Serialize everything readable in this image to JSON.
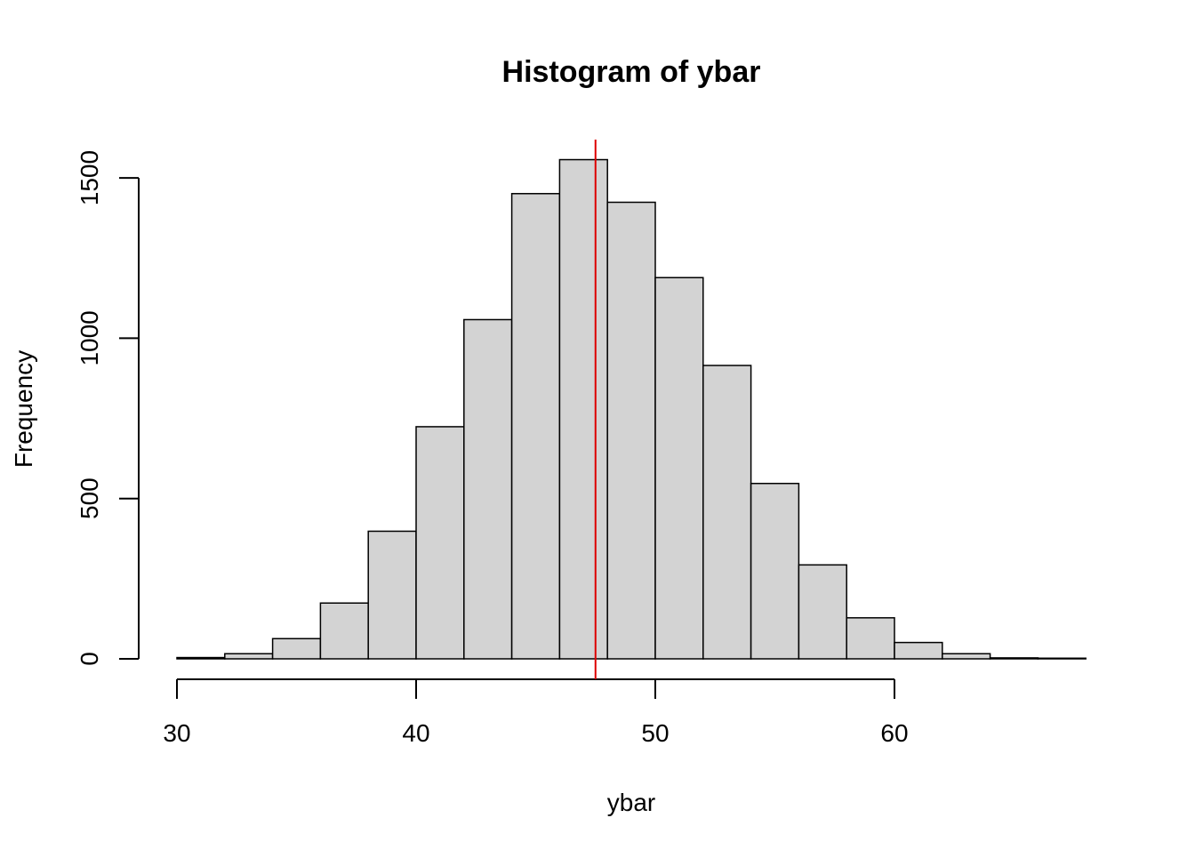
{
  "chart_data": {
    "type": "bar",
    "title": "Histogram of ybar",
    "xlabel": "ybar",
    "ylabel": "Frequency",
    "xlim": [
      30,
      68
    ],
    "ylim": [
      0,
      1600
    ],
    "x_ticks": [
      30,
      40,
      50,
      60
    ],
    "y_ticks": [
      0,
      500,
      1000,
      1500
    ],
    "bin_width": 2,
    "bins": [
      {
        "start": 30,
        "end": 32,
        "value": 4
      },
      {
        "start": 32,
        "end": 34,
        "value": 16
      },
      {
        "start": 34,
        "end": 36,
        "value": 63
      },
      {
        "start": 36,
        "end": 38,
        "value": 174
      },
      {
        "start": 38,
        "end": 40,
        "value": 398
      },
      {
        "start": 40,
        "end": 42,
        "value": 724
      },
      {
        "start": 42,
        "end": 44,
        "value": 1058
      },
      {
        "start": 44,
        "end": 46,
        "value": 1451
      },
      {
        "start": 46,
        "end": 48,
        "value": 1557
      },
      {
        "start": 48,
        "end": 50,
        "value": 1424
      },
      {
        "start": 50,
        "end": 52,
        "value": 1189
      },
      {
        "start": 52,
        "end": 54,
        "value": 915
      },
      {
        "start": 54,
        "end": 56,
        "value": 547
      },
      {
        "start": 56,
        "end": 58,
        "value": 293
      },
      {
        "start": 58,
        "end": 60,
        "value": 128
      },
      {
        "start": 60,
        "end": 62,
        "value": 51
      },
      {
        "start": 62,
        "end": 64,
        "value": 16
      },
      {
        "start": 64,
        "end": 66,
        "value": 3
      },
      {
        "start": 66,
        "end": 68,
        "value": 2
      }
    ],
    "vline": {
      "x": 47.5,
      "color": "#dd0000"
    },
    "bar_fill": "#d3d3d3",
    "bar_stroke": "#000000",
    "grid": false
  }
}
